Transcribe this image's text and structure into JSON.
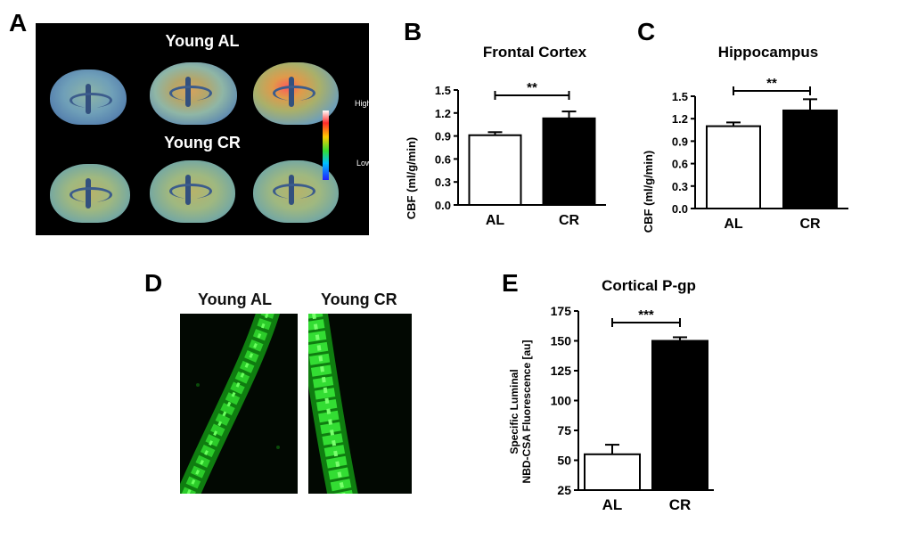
{
  "panels": {
    "a": "A",
    "b": "B",
    "c": "C",
    "d": "D",
    "e": "E"
  },
  "panel_a": {
    "top_label": "Young AL",
    "bottom_label": "Young CR",
    "scale_high": "High",
    "scale_low": "Low"
  },
  "panel_d": {
    "left_label": "Young AL",
    "right_label": "Young CR"
  },
  "colors": {
    "al_fill": "#ffffff",
    "cr_fill": "#000000",
    "axis": "#000000"
  },
  "chart_data": [
    {
      "id": "B",
      "type": "bar",
      "title": "Frontal Cortex",
      "ylabel": "CBF (ml/g/min)",
      "categories": [
        "AL",
        "CR"
      ],
      "values": [
        0.91,
        1.13
      ],
      "errors": [
        0.04,
        0.09
      ],
      "ylim": [
        0,
        1.5
      ],
      "yticks": [
        "0.0",
        "0.3",
        "0.6",
        "0.9",
        "1.2",
        "1.5"
      ],
      "significance": "**"
    },
    {
      "id": "C",
      "type": "bar",
      "title": "Hippocampus",
      "ylabel": "CBF (ml/g/min)",
      "categories": [
        "AL",
        "CR"
      ],
      "values": [
        1.1,
        1.31
      ],
      "errors": [
        0.05,
        0.15
      ],
      "ylim": [
        0,
        1.5
      ],
      "yticks": [
        "0.0",
        "0.3",
        "0.6",
        "0.9",
        "1.2",
        "1.5"
      ],
      "significance": "**"
    },
    {
      "id": "E",
      "type": "bar",
      "title": "Cortical P-gp",
      "ylabel_lines": [
        "Specific Luminal",
        "NBD-CSA Fluorescence [au]"
      ],
      "categories": [
        "AL",
        "CR"
      ],
      "values": [
        55,
        150
      ],
      "errors": [
        8,
        3
      ],
      "ylim": [
        25,
        175
      ],
      "yticks": [
        "25",
        "50",
        "75",
        "100",
        "125",
        "150",
        "175"
      ],
      "significance": "***"
    }
  ]
}
